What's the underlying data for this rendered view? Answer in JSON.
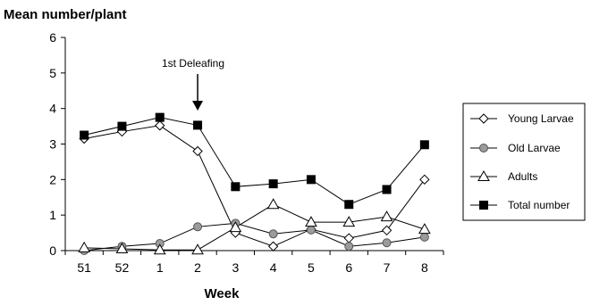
{
  "chart_data": {
    "type": "line",
    "title": "",
    "ylabel": "Mean number/plant",
    "xlabel": "Week",
    "categories": [
      "51",
      "52",
      "1",
      "2",
      "3",
      "4",
      "5",
      "6",
      "7",
      "8"
    ],
    "ylim": [
      0,
      6
    ],
    "yticks": [
      "0",
      "1",
      "2",
      "3",
      "4",
      "5",
      "6"
    ],
    "grid": false,
    "legend_position": "right",
    "annotation": {
      "text": "1st Deleafing",
      "category": "2"
    },
    "series": [
      {
        "name": "Young Larvae",
        "marker": "diamond-open",
        "values": [
          3.15,
          3.35,
          3.52,
          2.8,
          0.5,
          0.12,
          0.6,
          0.35,
          0.57,
          2.0
        ]
      },
      {
        "name": "Old Larvae",
        "marker": "circle-gray",
        "values": [
          0.0,
          0.12,
          0.2,
          0.67,
          0.77,
          0.47,
          0.58,
          0.12,
          0.22,
          0.38
        ]
      },
      {
        "name": "Adults",
        "marker": "triangle-open",
        "values": [
          0.08,
          0.05,
          0.02,
          0.02,
          0.65,
          1.3,
          0.8,
          0.8,
          0.95,
          0.6
        ]
      },
      {
        "name": "Total number",
        "marker": "square-filled",
        "values": [
          3.25,
          3.5,
          3.75,
          3.53,
          1.8,
          1.88,
          2.0,
          1.3,
          1.72,
          2.98
        ]
      }
    ]
  }
}
